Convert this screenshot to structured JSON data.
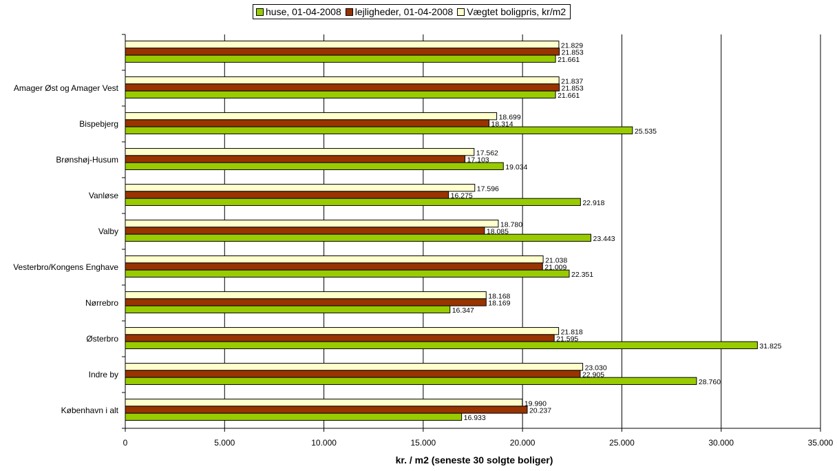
{
  "chart_data": {
    "type": "bar",
    "orientation": "horizontal",
    "xlabel": "kr. / m2 (seneste 30 solgte boliger)",
    "xlim": [
      0,
      35000
    ],
    "xticks": [
      0,
      5000,
      10000,
      15000,
      20000,
      25000,
      30000,
      35000
    ],
    "xtick_labels": [
      "0",
      "5.000",
      "10.000",
      "15.000",
      "20.000",
      "25.000",
      "30.000",
      "35.000"
    ],
    "grid": "vertical",
    "legend_position": "top",
    "categories": [
      "",
      "Amager Øst og Amager Vest",
      "Bispebjerg",
      "Brønshøj-Husum",
      "Vanløse",
      "Valby",
      "Vesterbro/Kongens Enghave",
      "Nørrebro",
      "Østerbro",
      "Indre by",
      "København i alt"
    ],
    "series": [
      {
        "name": "huse, 01-04-2008",
        "color": "#99cc00",
        "values": [
          21661,
          21661,
          25535,
          19034,
          22918,
          23443,
          22351,
          16347,
          31825,
          28760,
          16933
        ],
        "labels": [
          "21.661",
          "21.661",
          "25.535",
          "19.034",
          "22.918",
          "23.443",
          "22.351",
          "16.347",
          "31.825",
          "28.760",
          "16.933"
        ]
      },
      {
        "name": "lejligheder, 01-04-2008",
        "color": "#993300",
        "values": [
          21853,
          21853,
          18314,
          17103,
          16275,
          18085,
          21009,
          18169,
          21595,
          22905,
          20237
        ],
        "labels": [
          "21.853",
          "21.853",
          "18.314",
          "17.103",
          "16.275",
          "18.085",
          "21.009",
          "18.169",
          "21.595",
          "22.905",
          "20.237"
        ]
      },
      {
        "name": "Vægtet boligpris, kr/m2",
        "color": "#ffffcc",
        "values": [
          21829,
          21837,
          18699,
          17562,
          17596,
          18780,
          21038,
          18168,
          21818,
          23030,
          19990
        ],
        "labels": [
          "21.829",
          "21.837",
          "18.699",
          "17.562",
          "17.596",
          "18.780",
          "21.038",
          "18.168",
          "21.818",
          "23.030",
          "19.990"
        ]
      }
    ]
  }
}
